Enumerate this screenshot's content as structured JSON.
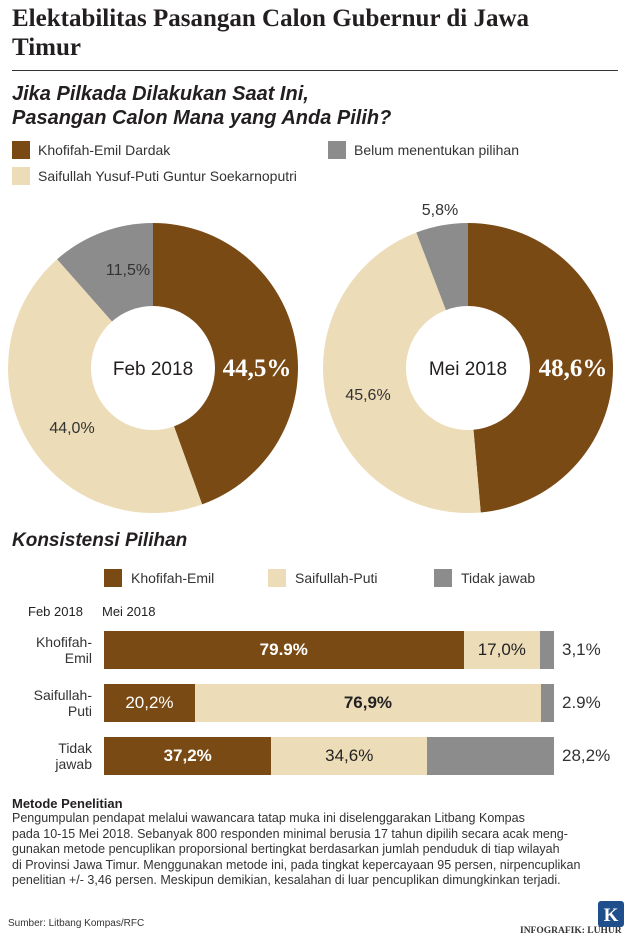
{
  "title": "Elektabilitas Pasangan Calon Gubernur di Jawa Timur",
  "question_line1": "Jika Pilkada Dilakukan Saat Ini,",
  "question_line2": "Pasangan Calon Mana yang Anda Pilih?",
  "colors": {
    "brown": "#7a4a14",
    "beige": "#eddcb8",
    "gray": "#8c8c8c"
  },
  "legend_top": [
    {
      "label": "Khofifah-Emil Dardak",
      "color": "#7a4a14"
    },
    {
      "label": "Saifullah Yusuf-Puti Guntur Soekarnoputri",
      "color": "#eddcb8"
    },
    {
      "label": "Belum menentukan pilihan",
      "color": "#8c8c8c"
    }
  ],
  "section_title": "Konsistensi Pilihan",
  "legend_bottom": [
    {
      "label": "Khofifah-Emil",
      "color": "#7a4a14"
    },
    {
      "label": "Saifullah-Puti",
      "color": "#eddcb8"
    },
    {
      "label": "Tidak jawab",
      "color": "#8c8c8c"
    }
  ],
  "axis_feb": "Feb 2018",
  "axis_mei": "Mei 2018",
  "method_title": "Metode Penelitian",
  "method_body": [
    "Pengumpulan pendapat melalui wawancara tatap muka ini diselenggarakan Litbang Kompas",
    "pada 10-15 Mei 2018. Sebanyak 800 responden minimal berusia 17 tahun dipilih secara acak meng-",
    "gunakan metode pencuplikan proporsional bertingkat berdasarkan jumlah penduduk di tiap wilayah",
    "di Provinsi Jawa Timur. Menggunakan metode ini, pada tingkat kepercayaan 95 persen, nirpencuplikan",
    "penelitian +/- 3,46 persen. Meskipun demikian, kesalahan di luar pencuplikan dimungkinkan terjadi."
  ],
  "source": "Sumber: Litbang Kompas/RFC",
  "credit": "INFOGRAFIK: LUHUR",
  "logo_letter": "K",
  "chart_data": [
    {
      "type": "pie",
      "title": "Feb 2018",
      "labels": [
        "Khofifah-Emil Dardak",
        "Saifullah Yusuf-Puti Guntur Soekarnoputri",
        "Belum menentukan pilihan"
      ],
      "values": [
        44.5,
        44.0,
        11.5
      ],
      "value_labels": [
        "44,5%",
        "44,0%",
        "11,5%"
      ]
    },
    {
      "type": "pie",
      "title": "Mei 2018",
      "labels": [
        "Khofifah-Emil Dardak",
        "Saifullah Yusuf-Puti Guntur Soekarnoputri",
        "Belum menentukan pilihan"
      ],
      "values": [
        48.6,
        45.6,
        5.8
      ],
      "value_labels": [
        "48,6%",
        "45,6%",
        "5,8%"
      ]
    },
    {
      "type": "bar",
      "title": "Konsistensi Pilihan",
      "stacked": true,
      "orientation": "horizontal",
      "categories": [
        "Khofifah-Emil",
        "Saifullah-Puti",
        "Tidak jawab"
      ],
      "category_lines": [
        [
          "Khofifah-",
          "Emil"
        ],
        [
          "Saifullah-",
          "Puti"
        ],
        [
          "Tidak",
          "jawab"
        ]
      ],
      "series": [
        {
          "name": "Khofifah-Emil",
          "values": [
            79.9,
            20.2,
            37.2
          ],
          "labels": [
            "79.9%",
            "20,2%",
            "37,2%"
          ]
        },
        {
          "name": "Saifullah-Puti",
          "values": [
            17.0,
            76.9,
            34.6
          ],
          "labels": [
            "17,0%",
            "76,9%",
            "34,6%"
          ]
        },
        {
          "name": "Tidak jawab",
          "values": [
            3.1,
            2.9,
            28.2
          ],
          "labels": [
            "3,1%",
            "2.9%",
            "28,2%"
          ]
        }
      ]
    }
  ]
}
